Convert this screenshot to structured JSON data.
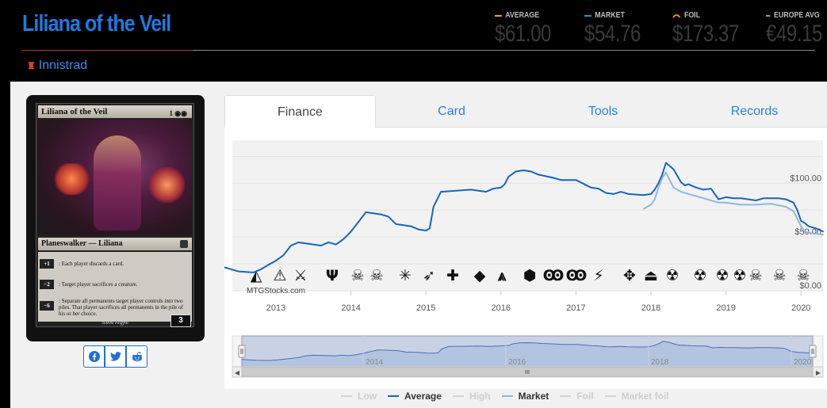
{
  "header": {
    "card_name": "Liliana of the Veil",
    "set_name": "Innistrad",
    "set_icon": "innistrad-set-icon"
  },
  "prices": [
    {
      "label": "AVERAGE",
      "value": "$61.00",
      "color": "#f0a33b",
      "icon": "line-swatch"
    },
    {
      "label": "MARKET",
      "value": "$54.76",
      "color": "#1ea0b8",
      "icon": "line-swatch"
    },
    {
      "label": "FOIL",
      "value": "$173.37",
      "color": "#f08a1c",
      "icon": "foil-arc-icon"
    },
    {
      "label": "EUROPE AVG",
      "value": "€49.15",
      "color": "#9a9a9a",
      "icon": "line-swatch"
    }
  ],
  "card_image": {
    "name": "Liliana of the Veil",
    "mana": "1 ◉◉",
    "type_line": "Planeswalker — Liliana",
    "abilities": [
      {
        "cost": "+1",
        "text": ": Each player discards a card."
      },
      {
        "cost": "−2",
        "text": ": Target player sacrifices a creature."
      },
      {
        "cost": "−6",
        "text": ": Separate all permanents target player controls into two piles. That player sacrifices all permanents in the pile of his or her choice."
      }
    ],
    "artist": "Steve Argyle",
    "loyalty": "3"
  },
  "share": [
    {
      "name": "facebook",
      "icon": "facebook-icon",
      "glyph": "f",
      "color": "#1f6fd6"
    },
    {
      "name": "twitter",
      "icon": "twitter-icon",
      "glyph": "🐦",
      "color": "#1f6fd6"
    },
    {
      "name": "reddit",
      "icon": "reddit-icon",
      "glyph": "👽",
      "color": "#1f6fd6"
    }
  ],
  "tabs": [
    {
      "label": "Finance",
      "active": true
    },
    {
      "label": "Card",
      "active": false
    },
    {
      "label": "Tools",
      "active": false
    },
    {
      "label": "Records",
      "active": false
    }
  ],
  "chart_data": {
    "type": "line",
    "watermark": "MTGStocks.com",
    "x_ticks": [
      "2013",
      "2014",
      "2015",
      "2016",
      "2017",
      "2018",
      "2019",
      "2020"
    ],
    "y_ticks": [
      "$0.00",
      "$50.00",
      "$100.00"
    ],
    "ylim": [
      0,
      140
    ],
    "navigator_ticks": [
      "2014",
      "2016",
      "2018",
      "2020"
    ],
    "series": [
      {
        "name": "Average",
        "color": "#1565c0",
        "points": [
          [
            2012.3,
            22
          ],
          [
            2012.5,
            18
          ],
          [
            2012.7,
            17
          ],
          [
            2012.8,
            20
          ],
          [
            2012.9,
            24
          ],
          [
            2013.0,
            28
          ],
          [
            2013.1,
            33
          ],
          [
            2013.2,
            42
          ],
          [
            2013.3,
            45
          ],
          [
            2013.4,
            44
          ],
          [
            2013.6,
            42
          ],
          [
            2013.7,
            45
          ],
          [
            2013.8,
            43
          ],
          [
            2013.9,
            48
          ],
          [
            2014.0,
            55
          ],
          [
            2014.1,
            64
          ],
          [
            2014.2,
            73
          ],
          [
            2014.3,
            72
          ],
          [
            2014.4,
            71
          ],
          [
            2014.5,
            69
          ],
          [
            2014.6,
            62
          ],
          [
            2014.8,
            60
          ],
          [
            2014.9,
            57
          ],
          [
            2015.0,
            56
          ],
          [
            2015.05,
            58
          ],
          [
            2015.1,
            78
          ],
          [
            2015.2,
            92
          ],
          [
            2015.4,
            93
          ],
          [
            2015.6,
            94
          ],
          [
            2015.8,
            92
          ],
          [
            2015.9,
            95
          ],
          [
            2016.0,
            96
          ],
          [
            2016.05,
            99
          ],
          [
            2016.1,
            106
          ],
          [
            2016.2,
            111
          ],
          [
            2016.3,
            112
          ],
          [
            2016.4,
            111
          ],
          [
            2016.5,
            108
          ],
          [
            2016.7,
            105
          ],
          [
            2016.8,
            103
          ],
          [
            2017.0,
            103
          ],
          [
            2017.2,
            96
          ],
          [
            2017.3,
            95
          ],
          [
            2017.4,
            91
          ],
          [
            2017.5,
            90
          ],
          [
            2017.6,
            92
          ],
          [
            2017.7,
            90
          ],
          [
            2017.9,
            89
          ],
          [
            2018.0,
            90
          ],
          [
            2018.05,
            94
          ],
          [
            2018.1,
            100
          ],
          [
            2018.15,
            108
          ],
          [
            2018.2,
            119
          ],
          [
            2018.3,
            113
          ],
          [
            2018.4,
            101
          ],
          [
            2018.45,
            98
          ],
          [
            2018.5,
            99
          ],
          [
            2018.6,
            96
          ],
          [
            2018.7,
            94
          ],
          [
            2018.8,
            95
          ],
          [
            2018.9,
            85
          ],
          [
            2019.0,
            87
          ],
          [
            2019.1,
            86
          ],
          [
            2019.2,
            86
          ],
          [
            2019.4,
            84
          ],
          [
            2019.5,
            86
          ],
          [
            2019.6,
            86
          ],
          [
            2019.7,
            86
          ],
          [
            2019.8,
            85
          ],
          [
            2019.9,
            82
          ],
          [
            2019.95,
            75
          ],
          [
            2020.0,
            65
          ],
          [
            2020.05,
            63
          ],
          [
            2020.1,
            60
          ],
          [
            2020.2,
            58
          ],
          [
            2020.3,
            55
          ]
        ]
      },
      {
        "name": "Market",
        "color": "#90b8dc",
        "points": [
          [
            2017.9,
            76
          ],
          [
            2018.0,
            80
          ],
          [
            2018.05,
            85
          ],
          [
            2018.1,
            96
          ],
          [
            2018.15,
            105
          ],
          [
            2018.2,
            110
          ],
          [
            2018.25,
            103
          ],
          [
            2018.3,
            96
          ],
          [
            2018.4,
            92
          ],
          [
            2018.5,
            90
          ],
          [
            2018.6,
            88
          ],
          [
            2018.7,
            86
          ],
          [
            2018.8,
            84
          ],
          [
            2018.9,
            82
          ],
          [
            2019.0,
            82
          ],
          [
            2019.2,
            80
          ],
          [
            2019.4,
            80
          ],
          [
            2019.6,
            81
          ],
          [
            2019.8,
            78
          ],
          [
            2019.9,
            74
          ],
          [
            2020.0,
            60
          ],
          [
            2020.05,
            55
          ],
          [
            2020.1,
            54
          ],
          [
            2020.2,
            53
          ],
          [
            2020.3,
            52
          ]
        ]
      }
    ]
  },
  "legend": [
    {
      "label": "Low",
      "color": "#bdbdbd",
      "active": false
    },
    {
      "label": "Average",
      "color": "#1565c0",
      "active": true
    },
    {
      "label": "High",
      "color": "#bdbdbd",
      "active": false
    },
    {
      "label": "Market",
      "color": "#90b8dc",
      "active": true
    },
    {
      "label": "Foil",
      "color": "#bdbdbd",
      "active": false
    },
    {
      "label": "Market foil",
      "color": "#bdbdbd",
      "active": false
    }
  ],
  "set_symbols": [
    "◭",
    "⚠",
    "⚔",
    "Ψ",
    "☠",
    "☠",
    "✳",
    "➶",
    "✚",
    "◆",
    "⩓",
    "⬢",
    "Ꙭ",
    "Ꙭ",
    "⚡",
    "✥",
    "⏏",
    "☢",
    "☢",
    "☢",
    "☢",
    "☠",
    "☠",
    "☠"
  ]
}
